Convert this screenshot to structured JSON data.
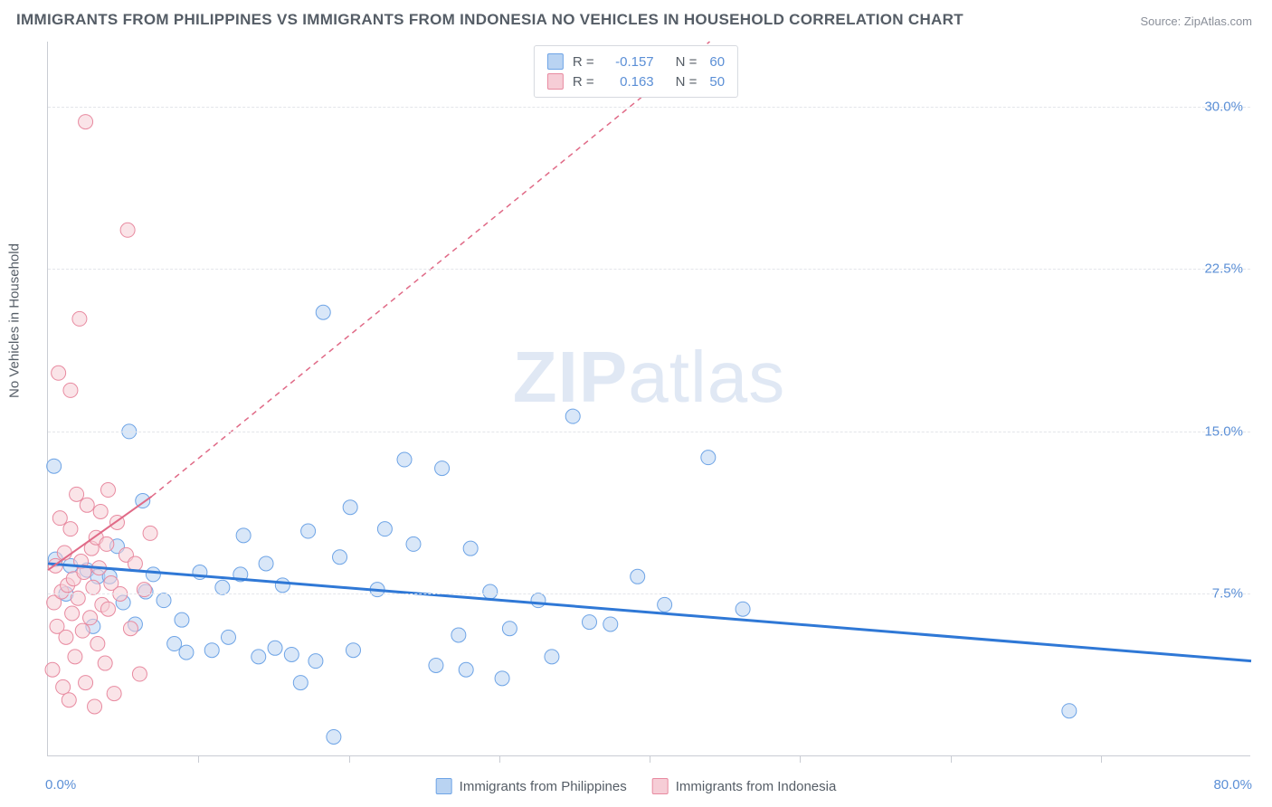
{
  "title": "IMMIGRANTS FROM PHILIPPINES VS IMMIGRANTS FROM INDONESIA NO VEHICLES IN HOUSEHOLD CORRELATION CHART",
  "source": "Source: ZipAtlas.com",
  "watermark_bold": "ZIP",
  "watermark_rest": "atlas",
  "y_axis_label": "No Vehicles in Household",
  "chart": {
    "type": "scatter",
    "xlim": [
      0.0,
      80.0
    ],
    "ylim": [
      0.0,
      33.0
    ],
    "x_ticks": [
      10,
      20,
      30,
      40,
      50,
      60,
      70
    ],
    "y_ticks": [
      7.5,
      15.0,
      22.5,
      30.0
    ],
    "y_tick_labels": [
      "7.5%",
      "15.0%",
      "22.5%",
      "30.0%"
    ],
    "x_min_label": "0.0%",
    "x_max_label": "80.0%",
    "background_color": "#ffffff",
    "grid_color": "#e3e5ea",
    "axis_color": "#c9ccd3",
    "tick_label_color": "#5b8fd6",
    "marker_radius": 8,
    "marker_opacity": 0.55,
    "series": [
      {
        "name": "Immigrants from Philippines",
        "fill": "#b9d3f2",
        "stroke": "#6ea4e6",
        "trend_stroke": "#2f78d6",
        "trend_width": 3,
        "trend_dash": "none",
        "r": "-0.157",
        "n": "60",
        "trend_x1": 0.0,
        "trend_y1": 8.9,
        "trend_x2": 80.0,
        "trend_y2": 4.4,
        "points": [
          [
            0.4,
            13.4
          ],
          [
            0.5,
            9.1
          ],
          [
            1.5,
            8.8
          ],
          [
            1.2,
            7.5
          ],
          [
            2.6,
            8.6
          ],
          [
            3.3,
            8.3
          ],
          [
            5.4,
            15.0
          ],
          [
            4.1,
            8.3
          ],
          [
            5.0,
            7.1
          ],
          [
            6.5,
            7.6
          ],
          [
            5.8,
            6.1
          ],
          [
            7.7,
            7.2
          ],
          [
            7.0,
            8.4
          ],
          [
            8.4,
            5.2
          ],
          [
            10.1,
            8.5
          ],
          [
            9.2,
            4.8
          ],
          [
            10.9,
            4.9
          ],
          [
            11.6,
            7.8
          ],
          [
            12.0,
            5.5
          ],
          [
            13.0,
            10.2
          ],
          [
            14.0,
            4.6
          ],
          [
            14.5,
            8.9
          ],
          [
            15.1,
            5.0
          ],
          [
            15.6,
            7.9
          ],
          [
            16.2,
            4.7
          ],
          [
            17.3,
            10.4
          ],
          [
            18.3,
            20.5
          ],
          [
            17.8,
            4.4
          ],
          [
            19.0,
            0.9
          ],
          [
            19.4,
            9.2
          ],
          [
            20.3,
            4.9
          ],
          [
            20.1,
            11.5
          ],
          [
            21.9,
            7.7
          ],
          [
            23.7,
            13.7
          ],
          [
            24.3,
            9.8
          ],
          [
            25.8,
            4.2
          ],
          [
            26.2,
            13.3
          ],
          [
            27.3,
            5.6
          ],
          [
            27.8,
            4.0
          ],
          [
            28.1,
            9.6
          ],
          [
            29.4,
            7.6
          ],
          [
            30.7,
            5.9
          ],
          [
            30.2,
            3.6
          ],
          [
            32.6,
            7.2
          ],
          [
            34.9,
            15.7
          ],
          [
            36.0,
            6.2
          ],
          [
            37.4,
            6.1
          ],
          [
            39.2,
            8.3
          ],
          [
            43.9,
            13.8
          ],
          [
            46.2,
            6.8
          ],
          [
            67.9,
            2.1
          ],
          [
            12.8,
            8.4
          ],
          [
            6.3,
            11.8
          ],
          [
            4.6,
            9.7
          ],
          [
            3.0,
            6.0
          ],
          [
            8.9,
            6.3
          ],
          [
            22.4,
            10.5
          ],
          [
            33.5,
            4.6
          ],
          [
            41.0,
            7.0
          ],
          [
            16.8,
            3.4
          ]
        ]
      },
      {
        "name": "Immigrants from Indonesia",
        "fill": "#f6cdd6",
        "stroke": "#e88aa0",
        "trend_stroke": "#e06a87",
        "trend_width": 2,
        "trend_dash": "6,5",
        "r": "0.163",
        "n": "50",
        "trend_x1": 0.0,
        "trend_y1": 8.6,
        "trend_x2": 6.9,
        "trend_y2": 12.0,
        "trend2_x1": 6.9,
        "trend2_y1": 12.0,
        "trend2_x2": 44.0,
        "trend2_y2": 33.0,
        "points": [
          [
            0.3,
            4.0
          ],
          [
            0.4,
            7.1
          ],
          [
            0.5,
            8.8
          ],
          [
            0.6,
            6.0
          ],
          [
            0.8,
            11.0
          ],
          [
            0.9,
            7.6
          ],
          [
            1.0,
            3.2
          ],
          [
            1.1,
            9.4
          ],
          [
            1.2,
            5.5
          ],
          [
            1.3,
            7.9
          ],
          [
            1.4,
            2.6
          ],
          [
            1.5,
            10.5
          ],
          [
            1.5,
            16.9
          ],
          [
            1.6,
            6.6
          ],
          [
            1.7,
            8.2
          ],
          [
            1.8,
            4.6
          ],
          [
            1.9,
            12.1
          ],
          [
            2.0,
            7.3
          ],
          [
            2.1,
            20.2
          ],
          [
            2.2,
            9.0
          ],
          [
            2.3,
            5.8
          ],
          [
            2.4,
            8.5
          ],
          [
            2.5,
            3.4
          ],
          [
            2.6,
            11.6
          ],
          [
            2.5,
            29.3
          ],
          [
            2.8,
            6.4
          ],
          [
            2.9,
            9.6
          ],
          [
            3.0,
            7.8
          ],
          [
            3.1,
            2.3
          ],
          [
            3.2,
            10.1
          ],
          [
            3.3,
            5.2
          ],
          [
            3.4,
            8.7
          ],
          [
            3.5,
            11.3
          ],
          [
            3.6,
            7.0
          ],
          [
            3.8,
            4.3
          ],
          [
            3.9,
            9.8
          ],
          [
            4.0,
            6.8
          ],
          [
            4.2,
            8.0
          ],
          [
            4.4,
            2.9
          ],
          [
            4.6,
            10.8
          ],
          [
            4.8,
            7.5
          ],
          [
            5.3,
            24.3
          ],
          [
            5.2,
            9.3
          ],
          [
            5.5,
            5.9
          ],
          [
            5.8,
            8.9
          ],
          [
            6.1,
            3.8
          ],
          [
            6.4,
            7.7
          ],
          [
            6.8,
            10.3
          ],
          [
            0.7,
            17.7
          ],
          [
            4.0,
            12.3
          ]
        ]
      }
    ]
  },
  "bottom_legend": [
    {
      "label": "Immigrants from Philippines",
      "fill": "#b9d3f2",
      "stroke": "#6ea4e6"
    },
    {
      "label": "Immigrants from Indonesia",
      "fill": "#f6cdd6",
      "stroke": "#e88aa0"
    }
  ],
  "top_legend_prefix_r": "R =",
  "top_legend_prefix_n": "N ="
}
